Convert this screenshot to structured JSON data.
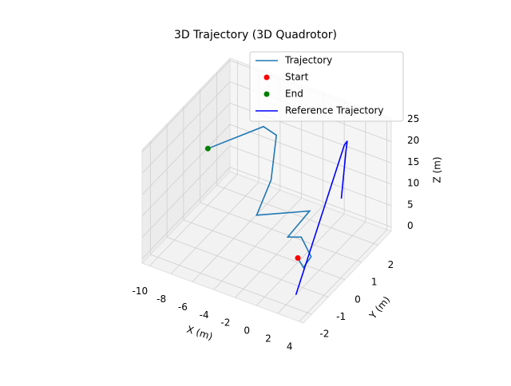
{
  "chart_data": {
    "type": "line3d",
    "title": "3D Trajectory (3D Quadrotor)",
    "xlabel": "X (m)",
    "ylabel": "Y (m)",
    "zlabel": "Z (m)",
    "xlim": [
      -10.7,
      4.4
    ],
    "ylim": [
      -2.5,
      2.8
    ],
    "zlim": [
      -1,
      25.5
    ],
    "xticks": [
      -10,
      -8,
      -6,
      -4,
      -2,
      0,
      2,
      4
    ],
    "yticks": [
      -2,
      -1,
      0,
      1,
      2
    ],
    "zticks": [
      0,
      5,
      10,
      15,
      20,
      25
    ],
    "grid": true,
    "legend": "upper right",
    "series": [
      {
        "name": "Trajectory",
        "type": "line",
        "color": "#1f77b4",
        "x": [
          0,
          1.3,
          1.4,
          -0.3,
          -1.1,
          -0.6,
          -3.7,
          -3.9,
          -4.8,
          -5.7,
          -7.8
        ],
        "y": [
          0,
          -0.5,
          -0.1,
          0.4,
          0.1,
          1.1,
          -0.1,
          0.9,
          1.8,
          1.6,
          -0.4
        ],
        "z": [
          0,
          1,
          2,
          3,
          3.5,
          6,
          7,
          11,
          17,
          19,
          20
        ]
      },
      {
        "name": "Start",
        "type": "scatter",
        "color": "#ff0000",
        "x": [
          0
        ],
        "y": [
          0
        ],
        "z": [
          0
        ]
      },
      {
        "name": "End",
        "type": "scatter",
        "color": "#008000",
        "x": [
          -7.8
        ],
        "y": [
          -0.4
        ],
        "z": [
          20
        ]
      },
      {
        "name": "Reference Trajectory",
        "type": "line",
        "color": "#0000ff",
        "x": [
          2.3,
          1.4,
          1.6,
          1.7,
          1.9
        ],
        "y": [
          -1.6,
          1.9,
          1.95,
          1.8,
          1.4
        ],
        "z": [
          0,
          20,
          21,
          19,
          10
        ]
      }
    ]
  }
}
